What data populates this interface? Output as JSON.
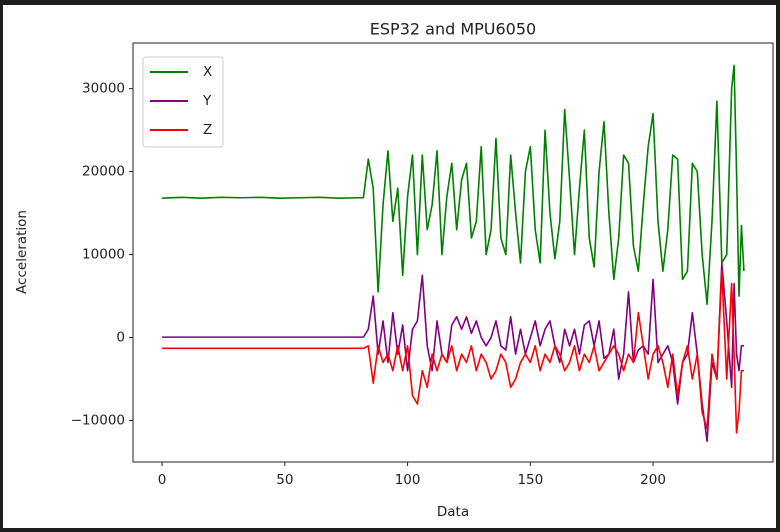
{
  "chart_data": {
    "type": "line",
    "title": "ESP32 and MPU6050",
    "x_label": "Data",
    "y_label": "Acceleration",
    "x": [
      0,
      8,
      16,
      24,
      32,
      40,
      48,
      56,
      64,
      72,
      80,
      82,
      84,
      86,
      88,
      90,
      92,
      94,
      96,
      98,
      100,
      102,
      104,
      106,
      108,
      110,
      112,
      114,
      116,
      118,
      120,
      122,
      124,
      126,
      128,
      130,
      132,
      134,
      136,
      138,
      140,
      142,
      144,
      146,
      148,
      150,
      152,
      154,
      156,
      158,
      160,
      162,
      164,
      166,
      168,
      170,
      172,
      174,
      176,
      178,
      180,
      182,
      184,
      186,
      188,
      190,
      192,
      194,
      196,
      198,
      200,
      202,
      204,
      206,
      208,
      210,
      212,
      214,
      216,
      218,
      220,
      222,
      224,
      226,
      228,
      230,
      232,
      233,
      234,
      235,
      236,
      237
    ],
    "series": [
      {
        "name": "X",
        "color": "#008000",
        "values": [
          16800,
          16900,
          16800,
          16900,
          16850,
          16900,
          16800,
          16850,
          16900,
          16800,
          16850,
          16850,
          21500,
          18000,
          5500,
          16000,
          22500,
          14000,
          18000,
          7500,
          17000,
          22000,
          10000,
          22000,
          13000,
          16000,
          22500,
          10000,
          17000,
          21000,
          13000,
          19000,
          21000,
          12000,
          14000,
          23000,
          10000,
          13000,
          24000,
          12000,
          10000,
          22000,
          15000,
          9000,
          20000,
          23000,
          13000,
          9000,
          25000,
          15000,
          9500,
          14000,
          27500,
          19000,
          10000,
          18000,
          25000,
          12000,
          8500,
          20000,
          26000,
          15000,
          7000,
          12000,
          22000,
          21000,
          11000,
          8000,
          16000,
          23000,
          27000,
          14000,
          8000,
          13000,
          22000,
          21500,
          7000,
          8000,
          21000,
          20000,
          10000,
          4000,
          14000,
          28500,
          9000,
          10000,
          30000,
          32800,
          20000,
          5000,
          13500,
          8000
        ]
      },
      {
        "name": "Y",
        "color": "#800080",
        "values": [
          50,
          50,
          50,
          50,
          50,
          50,
          50,
          50,
          50,
          50,
          50,
          50,
          1000,
          5000,
          -2000,
          2000,
          -3000,
          3000,
          -2000,
          1500,
          -4000,
          1000,
          2000,
          7500,
          -1000,
          -4000,
          2000,
          -2000,
          -3000,
          1500,
          2500,
          1000,
          2500,
          500,
          2000,
          0,
          -1000,
          0,
          2000,
          -1000,
          -1500,
          2500,
          -2000,
          1000,
          -2000,
          0,
          2000,
          -1000,
          1000,
          2000,
          -1000,
          -3000,
          1000,
          -1000,
          1000,
          -2000,
          1500,
          2000,
          -1000,
          2000,
          -2500,
          -2000,
          1000,
          -5000,
          -2000,
          5500,
          -3000,
          -1500,
          -1000,
          -2000,
          7000,
          -3000,
          -2000,
          -1000,
          -3000,
          -8000,
          -3000,
          -2000,
          3000,
          -2000,
          -8000,
          -12500,
          -3000,
          -5000,
          9000,
          2000,
          -6000,
          6500,
          -2000,
          -4000,
          -1000,
          -1000
        ]
      },
      {
        "name": "Z",
        "color": "#ff0000",
        "values": [
          -1300,
          -1300,
          -1300,
          -1300,
          -1300,
          -1300,
          -1300,
          -1300,
          -1300,
          -1300,
          -1300,
          -1300,
          -1000,
          -5500,
          -1000,
          -3000,
          -2000,
          -4000,
          -1000,
          -4000,
          -1000,
          -7000,
          -8000,
          -4000,
          -6000,
          -2000,
          -4000,
          -2000,
          -3000,
          -1000,
          -4000,
          -2000,
          -3000,
          -1000,
          -4000,
          -2000,
          -3000,
          -5000,
          -4000,
          -2000,
          -3000,
          -6000,
          -5000,
          -3000,
          -2000,
          -3000,
          -1000,
          -4000,
          -2000,
          -3000,
          -1000,
          -2000,
          -4000,
          -3000,
          -1000,
          -4000,
          -2000,
          -3000,
          -1000,
          -4000,
          -3000,
          -2000,
          -1000,
          -2000,
          -4000,
          -2000,
          -3000,
          3000,
          -1000,
          -5000,
          -2000,
          -1000,
          -3000,
          -6000,
          -2000,
          -7000,
          -3000,
          -1000,
          -5000,
          -2000,
          -9000,
          -11000,
          -2000,
          -5000,
          8000,
          -5000,
          6500,
          -2000,
          -11500,
          -9000,
          -4000,
          -4000
        ]
      }
    ],
    "xlim": [
      -11.85,
      248.85
    ],
    "xticks": [
      0,
      50,
      100,
      150,
      200
    ],
    "ylim": [
      -15000,
      35500
    ],
    "yticks": [
      {
        "value": -10000,
        "label": "−10000"
      },
      0,
      10000,
      20000,
      30000
    ],
    "legend": "upper left"
  }
}
